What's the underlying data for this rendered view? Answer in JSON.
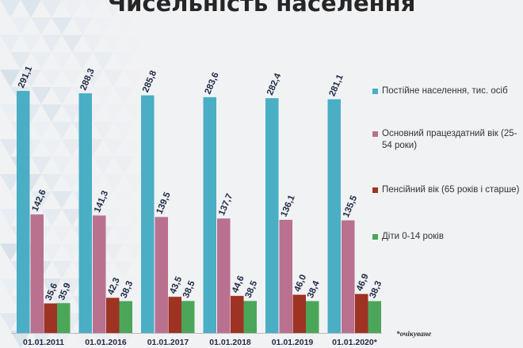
{
  "chart_data": {
    "type": "bar",
    "title": "Чисельність населення",
    "categories": [
      "01.01.2011",
      "01.01.2016",
      "01.01.2017",
      "01.01.2018",
      "01.01.2019",
      "01.01.2020*"
    ],
    "series": [
      {
        "name": "Постійне населення, тис. осіб",
        "color": "#4aaec5",
        "values": [
          291.1,
          288.3,
          285.8,
          283.6,
          282.4,
          281.1
        ],
        "labels": [
          "291,1",
          "288,3",
          "285,8",
          "283,6",
          "282,4",
          "281,1"
        ]
      },
      {
        "name": "Основний працездатний вік (25-54 роки)",
        "color": "#b9718f",
        "values": [
          142.6,
          141.3,
          139.5,
          137.7,
          136.1,
          135.5
        ],
        "labels": [
          "142,6",
          "141,3",
          "139,5",
          "137,7",
          "136,1",
          "135,5"
        ]
      },
      {
        "name": "Пенсійний  вік (65 років і старше)",
        "color": "#9e3324",
        "values": [
          35.6,
          42.3,
          43.5,
          44.6,
          46.0,
          46.9
        ],
        "labels": [
          "35,6",
          "42,3",
          "43,5",
          "44,6",
          "46,0",
          "46,9"
        ]
      },
      {
        "name": "Діти 0-14 років",
        "color": "#4ca65a",
        "values": [
          35.9,
          38.3,
          38.5,
          38.5,
          38.4,
          38.3
        ],
        "labels": [
          "35,9",
          "38,3",
          "38,5",
          "38,5",
          "38,4",
          "38,3"
        ]
      }
    ],
    "legend_position": "right",
    "grid": false,
    "footnote": "*очікуване"
  }
}
